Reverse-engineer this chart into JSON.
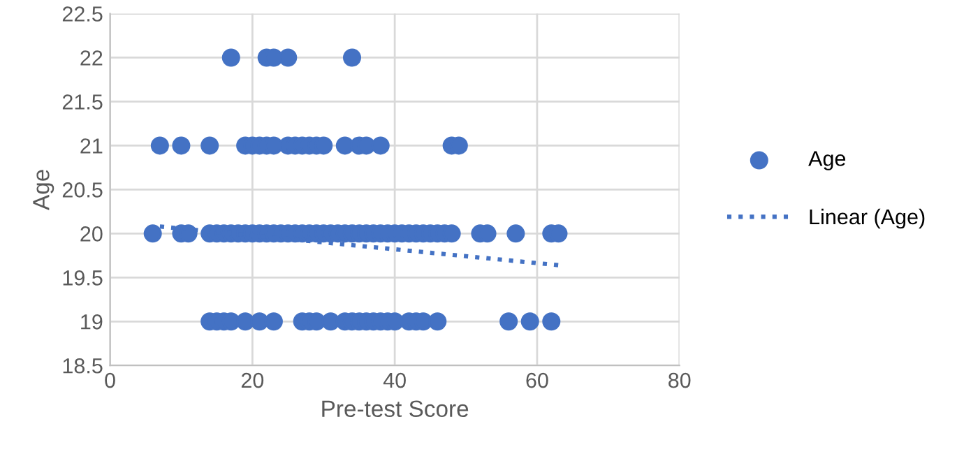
{
  "chart_data": {
    "type": "scatter",
    "xlabel": "Pre-test Score",
    "ylabel": "Age",
    "xlim": [
      0,
      80
    ],
    "xticks": [
      0,
      20,
      40,
      60,
      80
    ],
    "ylim": [
      18.5,
      22.5
    ],
    "yticks": [
      18.5,
      19,
      19.5,
      20,
      20.5,
      21,
      21.5,
      22,
      22.5
    ],
    "grid": true,
    "legend": "right",
    "series": [
      {
        "name": "Age",
        "marker": "circle",
        "color": "#4472c4",
        "x": [
          17,
          22,
          23,
          25,
          34,
          7,
          10,
          14,
          19,
          20,
          21,
          22,
          23,
          25,
          26,
          27,
          28,
          29,
          30,
          33,
          35,
          36,
          38,
          48,
          49,
          6,
          10,
          11,
          14,
          15,
          16,
          17,
          18,
          19,
          20,
          21,
          22,
          23,
          24,
          25,
          26,
          27,
          28,
          29,
          30,
          31,
          32,
          33,
          34,
          35,
          36,
          37,
          38,
          39,
          40,
          41,
          42,
          43,
          44,
          45,
          46,
          47,
          48,
          52,
          53,
          57,
          62,
          63,
          14,
          15,
          16,
          17,
          19,
          21,
          23,
          27,
          28,
          29,
          31,
          33,
          34,
          35,
          36,
          37,
          38,
          39,
          40,
          42,
          43,
          44,
          46,
          56,
          59,
          62
        ],
        "values": [
          22,
          22,
          22,
          22,
          22,
          21,
          21,
          21,
          21,
          21,
          21,
          21,
          21,
          21,
          21,
          21,
          21,
          21,
          21,
          21,
          21,
          21,
          21,
          21,
          21,
          20,
          20,
          20,
          20,
          20,
          20,
          20,
          20,
          20,
          20,
          20,
          20,
          20,
          20,
          20,
          20,
          20,
          20,
          20,
          20,
          20,
          20,
          20,
          20,
          20,
          20,
          20,
          20,
          20,
          20,
          20,
          20,
          20,
          20,
          20,
          20,
          20,
          20,
          20,
          20,
          20,
          20,
          20,
          19,
          19,
          19,
          19,
          19,
          19,
          19,
          19,
          19,
          19,
          19,
          19,
          19,
          19,
          19,
          19,
          19,
          19,
          19,
          19,
          19,
          19,
          19,
          19,
          19,
          19
        ]
      },
      {
        "name": "Linear (Age)",
        "type": "line",
        "line_style": "dotted",
        "color": "#4472c4",
        "x": [
          7,
          63
        ],
        "values": [
          20.08,
          19.64
        ]
      }
    ]
  }
}
